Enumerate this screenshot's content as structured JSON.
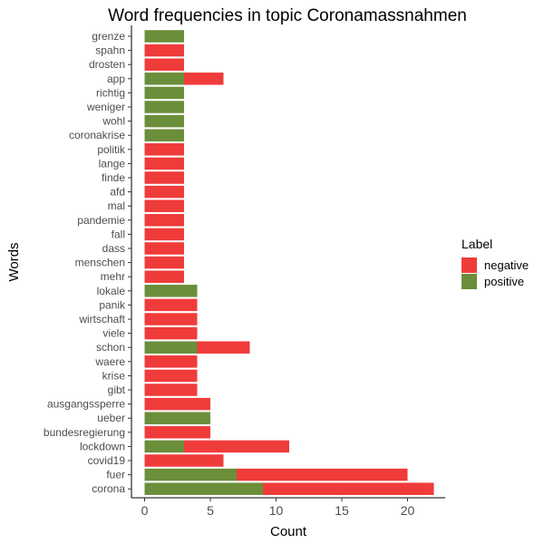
{
  "chart_data": {
    "type": "bar",
    "orientation": "horizontal",
    "stacked": true,
    "title": "Word frequencies in topic Coronamassnahmen",
    "xlabel": "Count",
    "ylabel": "Words",
    "xlim": [
      0,
      22
    ],
    "x_ticks": [
      0,
      5,
      10,
      15,
      20
    ],
    "grid": false,
    "legend": {
      "title": "Label",
      "placement": "right",
      "entries": [
        {
          "name": "negative",
          "color": "#F03B3B"
        },
        {
          "name": "positive",
          "color": "#6B8E3A"
        }
      ]
    },
    "categories": [
      "grenze",
      "spahn",
      "drosten",
      "app",
      "richtig",
      "weniger",
      "wohl",
      "coronakrise",
      "politik",
      "lange",
      "finde",
      "afd",
      "mal",
      "pandemie",
      "fall",
      "dass",
      "menschen",
      "mehr",
      "lokale",
      "panik",
      "wirtschaft",
      "viele",
      "schon",
      "waere",
      "krise",
      "gibt",
      "ausgangssperre",
      "ueber",
      "bundesregierung",
      "lockdown",
      "covid19",
      "fuer",
      "corona"
    ],
    "series": [
      {
        "name": "positive",
        "color": "#6B8E3A",
        "values": [
          3,
          0,
          0,
          3,
          3,
          3,
          3,
          3,
          0,
          0,
          0,
          0,
          0,
          0,
          0,
          0,
          0,
          0,
          4,
          0,
          0,
          0,
          4,
          0,
          0,
          0,
          0,
          5,
          0,
          3,
          0,
          7,
          9
        ]
      },
      {
        "name": "negative",
        "color": "#F03B3B",
        "values": [
          0,
          3,
          3,
          3,
          0,
          0,
          0,
          0,
          3,
          3,
          3,
          3,
          3,
          3,
          3,
          3,
          3,
          3,
          0,
          4,
          4,
          4,
          4,
          4,
          4,
          4,
          5,
          0,
          5,
          8,
          6,
          13,
          13
        ]
      }
    ]
  }
}
